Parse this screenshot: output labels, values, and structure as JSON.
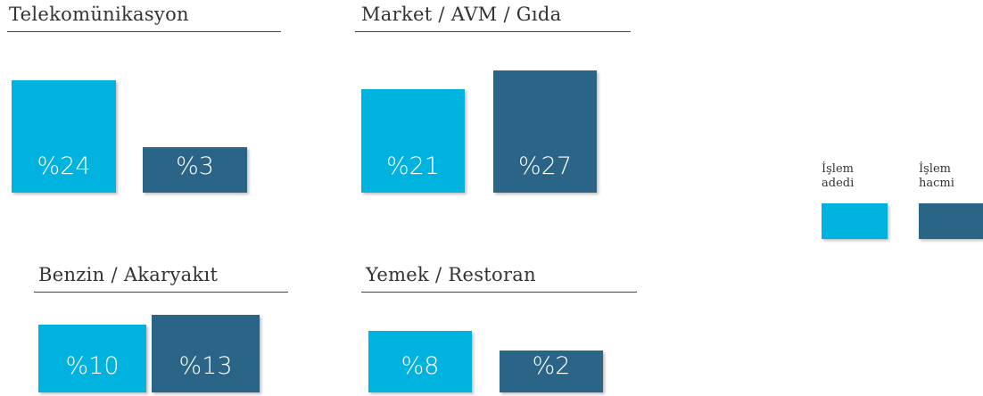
{
  "chart_data": [
    {
      "type": "bar",
      "title": "Telekomünikasyon",
      "values": [
        24,
        3
      ],
      "value_labels": [
        "%24",
        "%3"
      ]
    },
    {
      "type": "bar",
      "title": "Market / AVM / Gıda",
      "values": [
        21,
        27
      ],
      "value_labels": [
        "%21",
        "%27"
      ]
    },
    {
      "type": "bar",
      "title": "Benzin / Akaryakıt",
      "values": [
        10,
        13
      ],
      "value_labels": [
        "%10",
        "%13"
      ]
    },
    {
      "type": "bar",
      "title": "Yemek / Restoran",
      "values": [
        8,
        2
      ],
      "value_labels": [
        "%8",
        "%2"
      ]
    }
  ],
  "legend": {
    "items": [
      {
        "name": "İşlem adedi",
        "color": "#00b3de"
      },
      {
        "name": "İşlem hacmi",
        "color": "#2a6587"
      }
    ]
  }
}
